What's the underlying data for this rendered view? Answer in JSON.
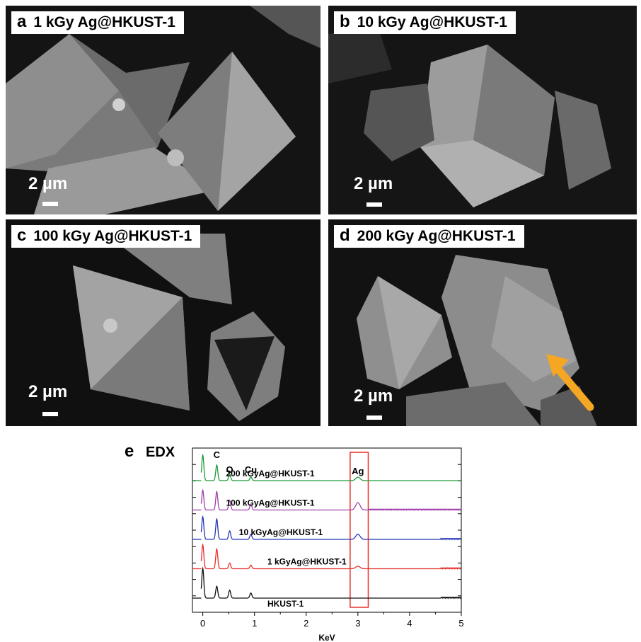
{
  "panels": [
    {
      "letter": "a",
      "label": "1 kGy Ag@HKUST-1",
      "scale": "2 µm"
    },
    {
      "letter": "b",
      "label": "10 kGy Ag@HKUST-1",
      "scale": "2 µm"
    },
    {
      "letter": "c",
      "label": "100 kGy Ag@HKUST-1",
      "scale": "2 µm"
    },
    {
      "letter": "d",
      "label": "200 kGy Ag@HKUST-1",
      "scale": "2 µm"
    }
  ],
  "arrow_color": "#f5a623",
  "chart_data": {
    "type": "line",
    "panel_letter": "e",
    "title": "EDX",
    "xlabel": "KeV",
    "xlim": [
      -0.2,
      5
    ],
    "xticks": [
      0,
      1,
      2,
      3,
      4,
      5
    ],
    "peak_labels": [
      {
        "text": "C",
        "x": 0.27
      },
      {
        "text": "O",
        "x": 0.52
      },
      {
        "text": "Cu",
        "x": 0.93
      },
      {
        "text": "Ag",
        "x": 3.0
      }
    ],
    "highlight_box": {
      "x": [
        2.85,
        3.2
      ],
      "color": "#e8302a"
    },
    "series": [
      {
        "name": "HKUST-1",
        "color": "#111111",
        "baseline": 0,
        "peaks": [
          [
            0.0,
            10.5
          ],
          [
            0.27,
            4.2
          ],
          [
            0.52,
            2.8
          ],
          [
            0.93,
            1.8
          ]
        ],
        "noise_from": 4.6,
        "label_x": 1.25
      },
      {
        "name": "1 kGyAg@HKUST-1",
        "color": "#e8302a",
        "baseline": 1,
        "peaks": [
          [
            0.0,
            8.5
          ],
          [
            0.27,
            7.0
          ],
          [
            0.52,
            2.0
          ],
          [
            0.93,
            1.3
          ],
          [
            3.0,
            0.9
          ]
        ],
        "noise_from": 4.6,
        "label_x": 1.25
      },
      {
        "name": "10 kGyAg@HKUST-1",
        "color": "#2436b5",
        "baseline": 2,
        "peaks": [
          [
            0.0,
            8.0
          ],
          [
            0.27,
            7.2
          ],
          [
            0.52,
            3.0
          ],
          [
            0.93,
            1.8
          ],
          [
            3.0,
            1.8
          ]
        ],
        "noise_from": 4.6,
        "label_x": 0.7
      },
      {
        "name": "100 kGyAg@HKUST-1",
        "color": "#a03dab",
        "baseline": 3,
        "peaks": [
          [
            0.0,
            7.0
          ],
          [
            0.27,
            6.5
          ],
          [
            0.52,
            3.4
          ],
          [
            0.93,
            2.0
          ],
          [
            3.0,
            2.6
          ]
        ],
        "noise_from": 3.2,
        "label_x": 0.45
      },
      {
        "name": "200 kGyAg@HKUST-1",
        "color": "#1e9a3a",
        "baseline": 4,
        "peaks": [
          [
            0.0,
            9.0
          ],
          [
            0.27,
            5.5
          ],
          [
            0.52,
            2.3
          ],
          [
            0.93,
            1.3
          ],
          [
            3.0,
            1.2
          ]
        ],
        "noise_from": 6,
        "label_x": 0.45
      }
    ]
  }
}
